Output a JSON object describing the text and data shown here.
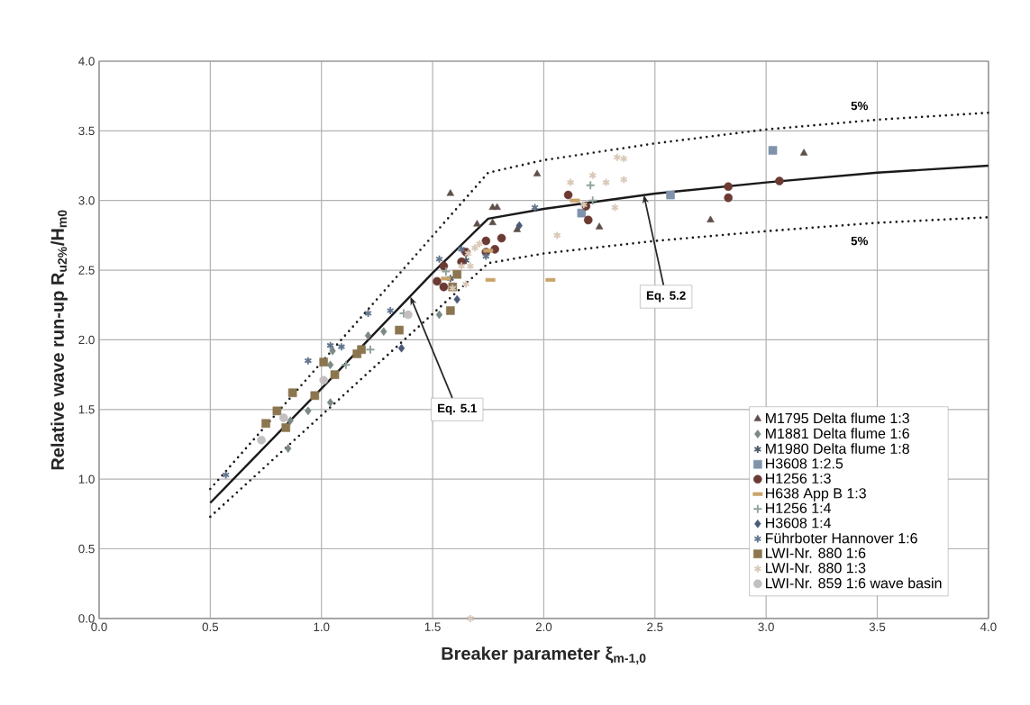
{
  "chart_data": {
    "type": "scatter",
    "xlabel": "Breaker parameter ξ$_{m-1,0}$",
    "ylabel": "Relative wave run-up R$_{u2%}$/H$_{m0}$",
    "xlim": [
      0,
      4
    ],
    "ylim": [
      0,
      4
    ],
    "xticks": [
      {
        "value": 0,
        "label": "0.0"
      },
      {
        "value": 0.5,
        "label": "0.5"
      },
      {
        "value": 1,
        "label": "1.0"
      },
      {
        "value": 1.5,
        "label": "1.5"
      },
      {
        "value": 2,
        "label": "2.0"
      },
      {
        "value": 2.5,
        "label": "2.5"
      },
      {
        "value": 3,
        "label": "3.0"
      },
      {
        "value": 3.5,
        "label": "3.5"
      },
      {
        "value": 4,
        "label": "4.0"
      }
    ],
    "yticks": [
      {
        "value": 0,
        "label": "0.0"
      },
      {
        "value": 0.5,
        "label": "0.5"
      },
      {
        "value": 1,
        "label": "1.0"
      },
      {
        "value": 1.5,
        "label": "1.5"
      },
      {
        "value": 2,
        "label": "2.0"
      },
      {
        "value": 2.5,
        "label": "2.5"
      },
      {
        "value": 3,
        "label": "3.0"
      },
      {
        "value": 3.5,
        "label": "3.5"
      },
      {
        "value": 4,
        "label": "4.0"
      }
    ],
    "grid": true,
    "legend": "bottom right",
    "annotations": [
      {
        "text": "Eq. 5.1",
        "x": 1.4,
        "y": 2.31
      },
      {
        "text": "Eq. 5.2",
        "x": 2.45,
        "y": 3.04
      },
      "5%",
      "5%"
    ],
    "series": [
      {
        "type": "line",
        "color": "#1a1a1a",
        "line_style": "solid",
        "marker": "none",
        "x": [
          0.5,
          1.0,
          1.5,
          1.75,
          2.0,
          2.5,
          3.0,
          3.5,
          4.0
        ],
        "values": [
          0.83,
          1.65,
          2.48,
          2.87,
          2.94,
          3.05,
          3.13,
          3.2,
          3.25
        ]
      },
      {
        "type": "line",
        "color": "#1a1a1a",
        "line_style": "dotted",
        "marker": "none",
        "x": [
          0.5,
          1.75,
          2.0,
          2.5,
          3.0,
          3.5,
          4.0
        ],
        "values": [
          0.93,
          3.2,
          3.29,
          3.41,
          3.51,
          3.58,
          3.63
        ]
      },
      {
        "type": "line",
        "color": "#1a1a1a",
        "line_style": "dotted",
        "marker": "none",
        "x": [
          0.5,
          1.75,
          2.0,
          2.5,
          3.0,
          3.5,
          4.0
        ],
        "values": [
          0.73,
          2.55,
          2.62,
          2.71,
          2.78,
          2.84,
          2.88
        ]
      },
      {
        "name": "M1795 Delta flume 1:3",
        "color": "#5e4f4a",
        "marker": "triangle",
        "x": [
          1.58,
          1.7,
          1.77,
          1.79,
          1.77,
          1.97,
          1.88,
          2.25,
          2.75,
          3.17
        ],
        "values": [
          3.05,
          2.83,
          2.95,
          2.95,
          2.84,
          3.19,
          2.79,
          2.81,
          2.86,
          3.34
        ]
      },
      {
        "name": "M1881 Delta flume 1:6",
        "color": "#7b8a84",
        "marker": "diamond",
        "x": [
          0.85,
          0.86,
          0.94,
          1.04,
          1.04,
          1.05,
          1.21,
          1.28,
          1.53
        ],
        "values": [
          1.22,
          1.42,
          1.49,
          1.55,
          1.82,
          1.92,
          2.03,
          2.06,
          2.18
        ]
      },
      {
        "name": "M1980 Delta flume 1:8",
        "color": "#4d5a6a",
        "marker": "cross",
        "x": [
          1.58,
          1.65
        ],
        "values": [
          2.44,
          2.57
        ]
      },
      {
        "name": "H3608 1:2.5",
        "color": "#7f93ab",
        "marker": "square",
        "x": [
          2.17,
          2.57,
          3.03
        ],
        "values": [
          2.91,
          3.04,
          3.36
        ]
      },
      {
        "name": "H1256 1:3",
        "color": "#6b3a33",
        "marker": "circle",
        "x": [
          1.52,
          1.55,
          1.55,
          1.63,
          1.65,
          1.74,
          1.74,
          1.78,
          1.81,
          2.11,
          2.19,
          2.2,
          2.83,
          2.83,
          3.06
        ],
        "values": [
          2.42,
          2.38,
          2.53,
          2.56,
          2.63,
          2.71,
          2.63,
          2.65,
          2.73,
          3.04,
          2.96,
          2.86,
          3.1,
          3.02,
          3.14
        ]
      },
      {
        "name": "H638 App B 1:3",
        "color": "#c9a46a",
        "x": [
          1.56,
          1.75,
          1.76,
          2.03,
          2.14
        ],
        "values": [
          2.44,
          2.64,
          2.43,
          2.43,
          3.0
        ]
      },
      {
        "name": "H1256 1:4",
        "color": "#8fa398",
        "marker": "plus",
        "x": [
          1.11,
          1.22,
          1.37,
          1.56,
          2.21,
          2.22
        ],
        "values": [
          1.82,
          1.93,
          2.19,
          2.49,
          3.11,
          3.0
        ]
      },
      {
        "name": "H3608 1:4",
        "color": "#485a75",
        "marker": "diamond",
        "x": [
          1.36,
          1.61,
          1.89
        ],
        "values": [
          1.94,
          2.29,
          2.82
        ]
      },
      {
        "name": "Führboter Hannover 1:6",
        "color": "#62768f",
        "marker": "cross",
        "x": [
          0.57,
          0.94,
          1.04,
          1.09,
          1.21,
          1.31,
          1.53,
          1.63,
          1.74,
          1.96
        ],
        "values": [
          1.03,
          1.85,
          1.96,
          1.95,
          2.19,
          2.21,
          2.58,
          2.65,
          2.6,
          2.95
        ]
      },
      {
        "name": "LWI-Nr. 880 1:6",
        "color": "#8b7650",
        "marker": "square",
        "x": [
          0.75,
          0.8,
          0.84,
          0.87,
          0.97,
          1.01,
          1.06,
          1.16,
          1.18,
          1.35,
          1.58,
          1.59,
          1.61
        ],
        "values": [
          1.4,
          1.49,
          1.37,
          1.62,
          1.6,
          1.84,
          1.75,
          1.9,
          1.93,
          2.07,
          2.21,
          2.38,
          2.47
        ]
      },
      {
        "name": "LWI-Nr. 880 1:3",
        "color": "#d9c9b8",
        "marker": "cross",
        "x": [
          1.59,
          1.63,
          1.65,
          1.66,
          1.67,
          1.67,
          1.69,
          1.71,
          2.06,
          2.12,
          2.18,
          2.22,
          2.28,
          2.32,
          2.33,
          2.36,
          2.36
        ],
        "values": [
          2.37,
          2.53,
          2.4,
          2.62,
          2.53,
          0.0,
          2.66,
          2.69,
          2.75,
          3.13,
          2.97,
          3.18,
          3.13,
          2.95,
          3.31,
          3.3,
          3.15
        ]
      },
      {
        "name": "LWI-Nr. 859 1:6 wave basin",
        "color": "#c3bfbf",
        "marker": "circle",
        "x": [
          0.73,
          0.83,
          1.01,
          1.39
        ],
        "values": [
          1.28,
          1.44,
          1.71,
          2.18
        ]
      }
    ]
  }
}
